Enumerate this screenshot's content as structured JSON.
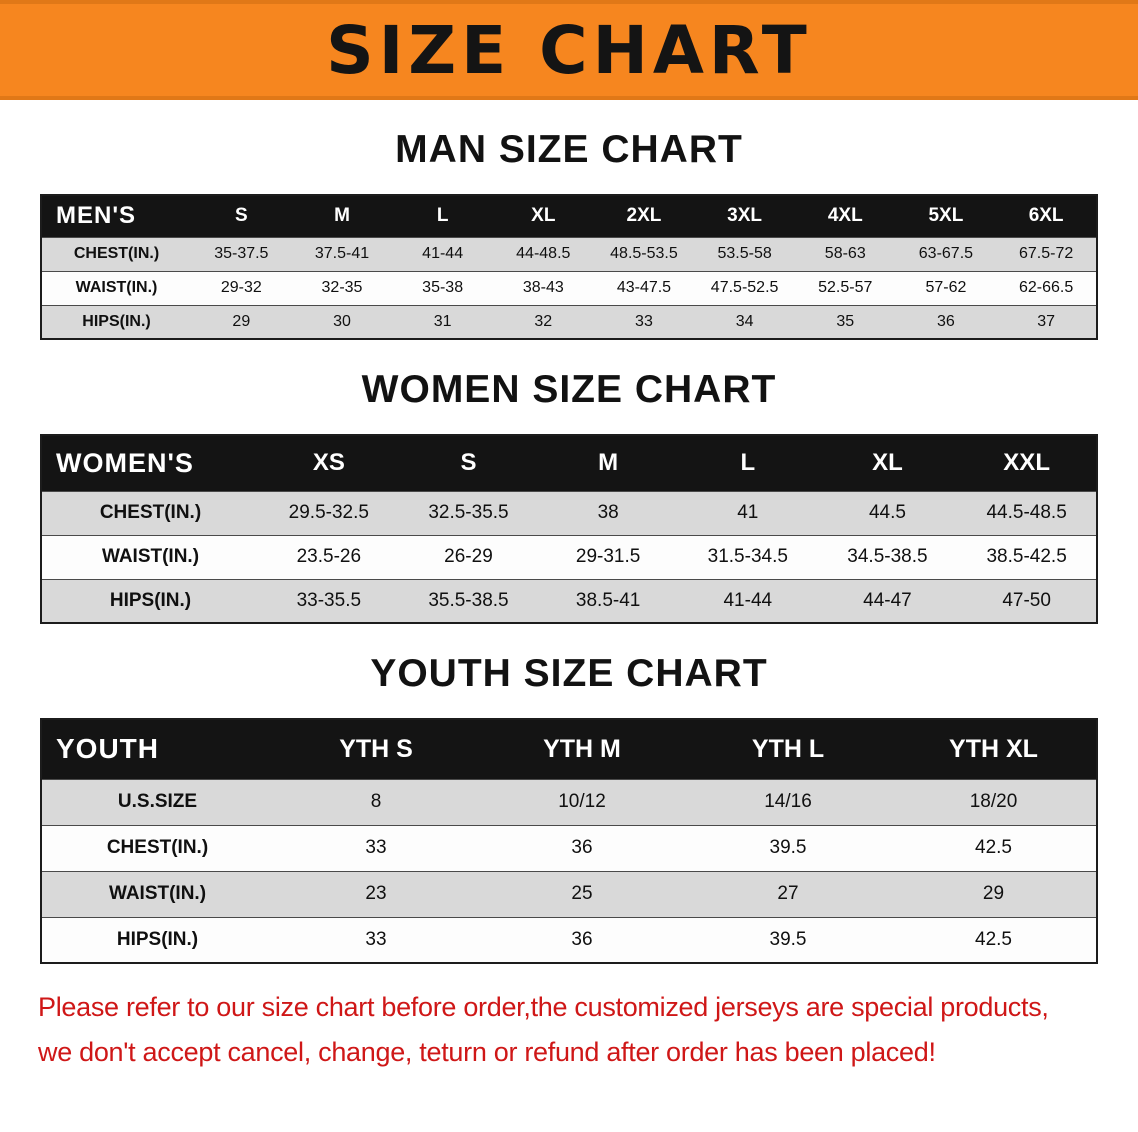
{
  "banner": {
    "title": "SIZE CHART"
  },
  "colors": {
    "banner_bg": "#f6861f",
    "header_bg": "#141414",
    "row_alt_bg": "#d9d9d9",
    "disclaimer_red": "#cf1717"
  },
  "sections": [
    {
      "heading": "MAN SIZE CHART",
      "table": {
        "header": [
          "MEN'S",
          "S",
          "M",
          "L",
          "XL",
          "2XL",
          "3XL",
          "4XL",
          "5XL",
          "6XL"
        ],
        "rows": [
          [
            "CHEST(IN.)",
            "35-37.5",
            "37.5-41",
            "41-44",
            "44-48.5",
            "48.5-53.5",
            "53.5-58",
            "58-63",
            "63-67.5",
            "67.5-72"
          ],
          [
            "WAIST(IN.)",
            "29-32",
            "32-35",
            "35-38",
            "38-43",
            "43-47.5",
            "47.5-52.5",
            "52.5-57",
            "57-62",
            "62-66.5"
          ],
          [
            "HIPS(IN.)",
            "29",
            "30",
            "31",
            "32",
            "33",
            "34",
            "35",
            "36",
            "37"
          ]
        ]
      }
    },
    {
      "heading": "WOMEN SIZE CHART",
      "table": {
        "header": [
          "WOMEN'S",
          "XS",
          "S",
          "M",
          "L",
          "XL",
          "XXL"
        ],
        "rows": [
          [
            "CHEST(IN.)",
            "29.5-32.5",
            "32.5-35.5",
            "38",
            "41",
            "44.5",
            "44.5-48.5"
          ],
          [
            "WAIST(IN.)",
            "23.5-26",
            "26-29",
            "29-31.5",
            "31.5-34.5",
            "34.5-38.5",
            "38.5-42.5"
          ],
          [
            "HIPS(IN.)",
            "33-35.5",
            "35.5-38.5",
            "38.5-41",
            "41-44",
            "44-47",
            "47-50"
          ]
        ]
      }
    },
    {
      "heading": "YOUTH SIZE CHART",
      "table": {
        "header": [
          "YOUTH",
          "YTH S",
          "YTH M",
          "YTH L",
          "YTH XL"
        ],
        "rows": [
          [
            "U.S.SIZE",
            "8",
            "10/12",
            "14/16",
            "18/20"
          ],
          [
            "CHEST(IN.)",
            "33",
            "36",
            "39.5",
            "42.5"
          ],
          [
            "WAIST(IN.)",
            "23",
            "25",
            "27",
            "29"
          ],
          [
            "HIPS(IN.)",
            "33",
            "36",
            "39.5",
            "42.5"
          ]
        ]
      }
    }
  ],
  "disclaimer": {
    "line1": "Please refer to our size chart before order,the customized jerseys are special products,",
    "line2": "we don't accept cancel, change, teturn or refund after order has been placed!"
  }
}
